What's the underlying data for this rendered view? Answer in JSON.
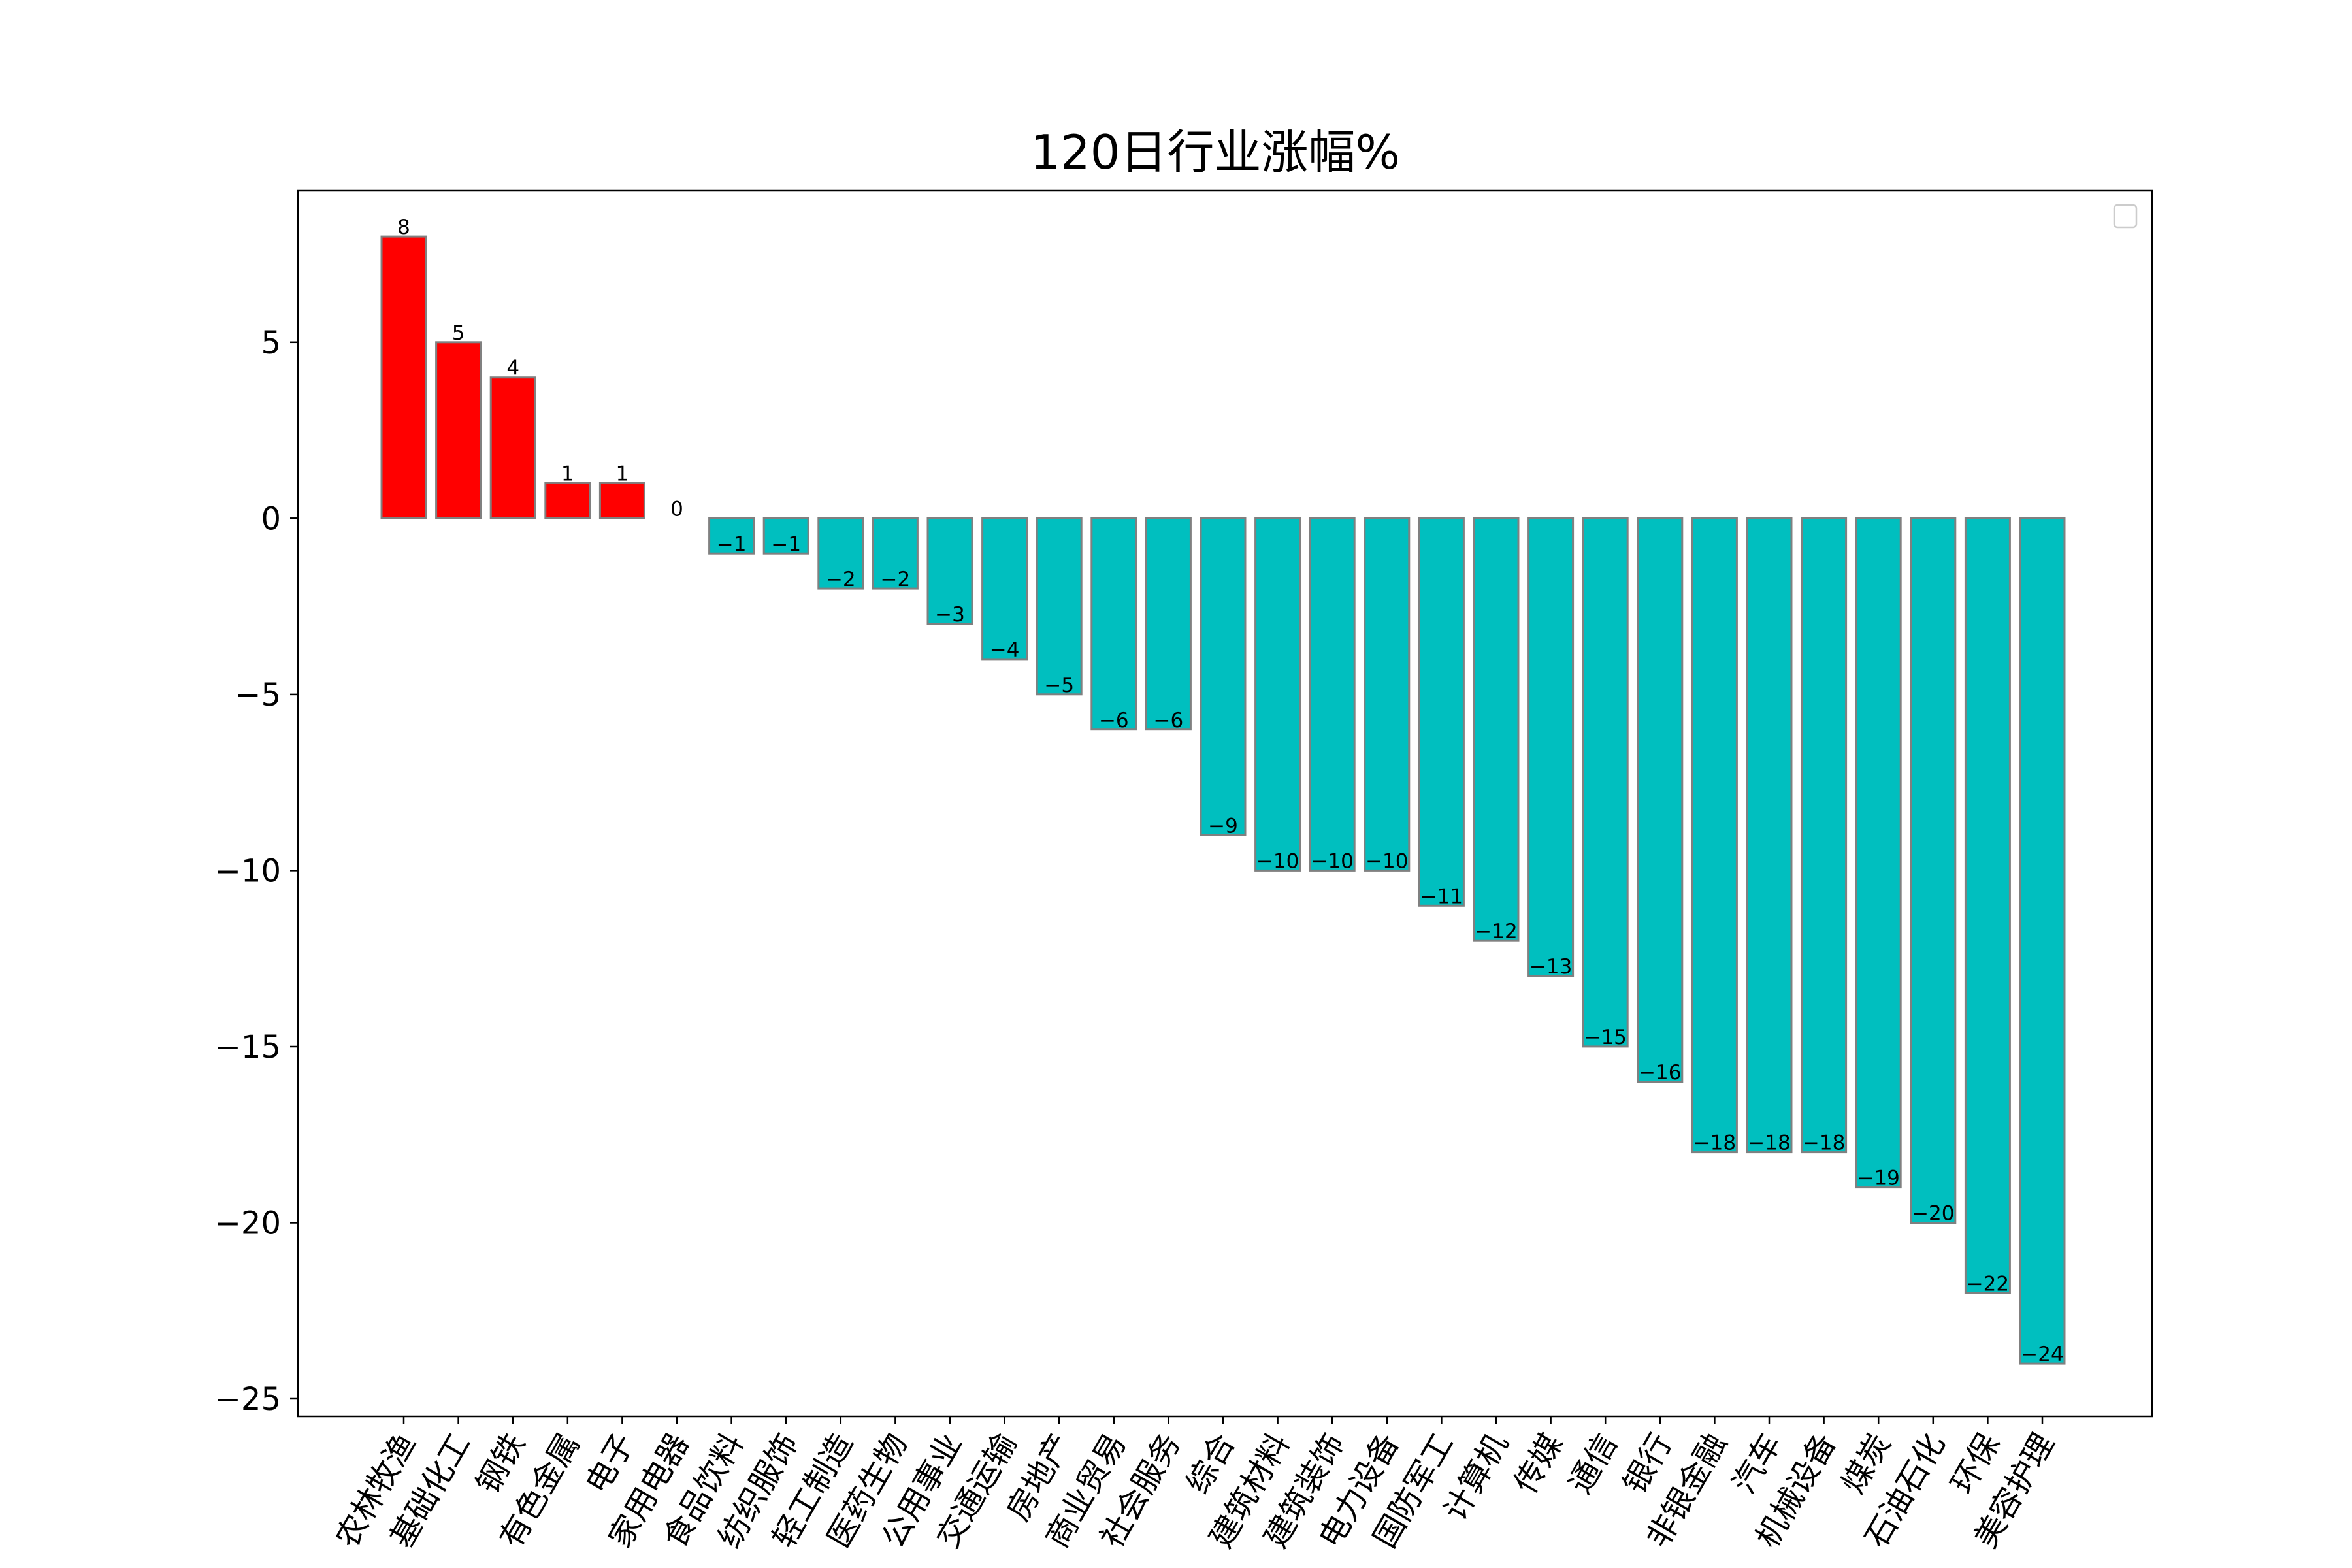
{
  "chart_data": {
    "type": "bar",
    "title": "120日行业涨幅%",
    "xlabel": "",
    "ylabel": "",
    "ylim": [
      -25.5,
      9.3
    ],
    "yticks": [
      -25,
      -20,
      -15,
      -10,
      -5,
      0,
      5
    ],
    "ytick_labels": [
      "−25",
      "−20",
      "−15",
      "−10",
      "−5",
      "0",
      "5"
    ],
    "positive_color": "#ff0000",
    "negative_color": "#00bfbf",
    "edge_color": "#808080",
    "legend": {
      "location": "top-right",
      "entries": []
    },
    "categories": [
      "农林牧渔",
      "基础化工",
      "钢铁",
      "有色金属",
      "电子",
      "家用电器",
      "食品饮料",
      "纺织服饰",
      "轻工制造",
      "医药生物",
      "公用事业",
      "交通运输",
      "房地产",
      "商业贸易",
      "社会服务",
      "综合",
      "建筑材料",
      "建筑装饰",
      "电力设备",
      "国防军工",
      "计算机",
      "传媒",
      "通信",
      "银行",
      "非银金融",
      "汽车",
      "机械设备",
      "煤炭",
      "石油石化",
      "环保",
      "美容护理"
    ],
    "values": [
      8,
      5,
      4,
      1,
      1,
      0,
      -1,
      -1,
      -2,
      -2,
      -3,
      -4,
      -5,
      -6,
      -6,
      -9,
      -10,
      -10,
      -10,
      -11,
      -12,
      -13,
      -15,
      -16,
      -18,
      -18,
      -18,
      -19,
      -20,
      -22,
      -24
    ],
    "value_labels": [
      "8",
      "5",
      "4",
      "1",
      "1",
      "0",
      "−1",
      "−1",
      "−2",
      "−2",
      "−3",
      "−4",
      "−5",
      "−6",
      "−6",
      "−9",
      "−10",
      "−10",
      "−10",
      "−11",
      "−12",
      "−13",
      "−15",
      "−16",
      "−18",
      "−18",
      "−18",
      "−19",
      "−20",
      "−22",
      "−24"
    ]
  }
}
